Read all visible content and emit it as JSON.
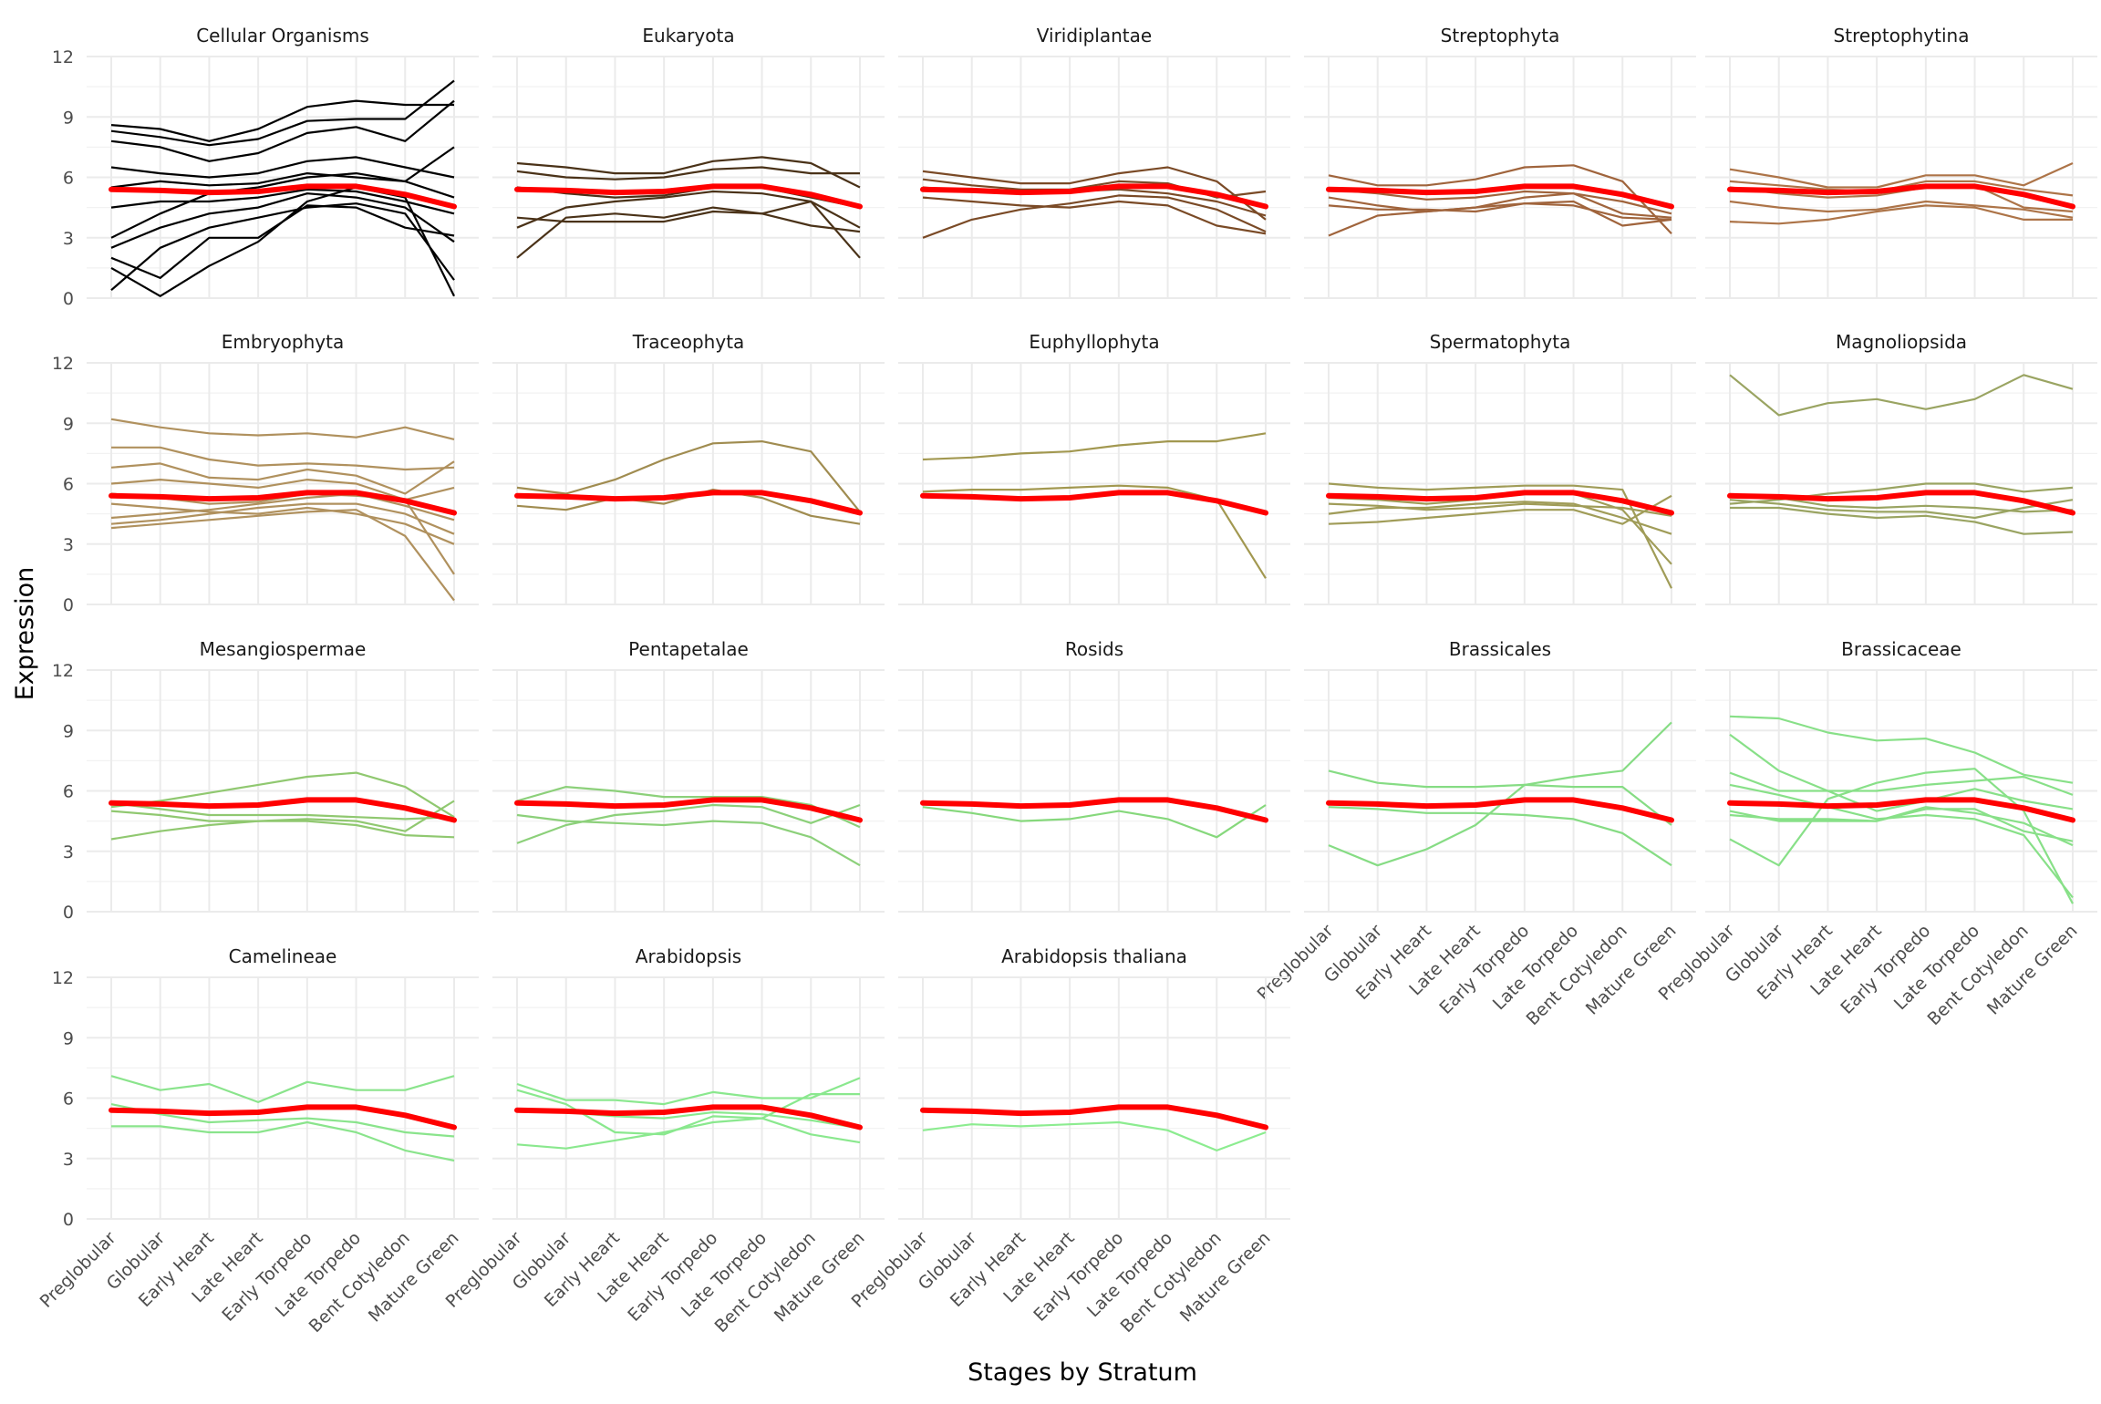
{
  "chart_data": {
    "type": "line",
    "xlabel": "Stages by Stratum",
    "ylabel": "Expression",
    "ylim": [
      0,
      12
    ],
    "y_ticks": [
      0,
      3,
      6,
      9,
      12
    ],
    "categories": [
      "Preglobular",
      "Globular",
      "Early Heart",
      "Late Heart",
      "Early Torpedo",
      "Late Torpedo",
      "Bent Cotyledon",
      "Mature Green"
    ],
    "grid": true,
    "legend": "none",
    "mean_series_color": "#ff0000",
    "mean_values": [
      5.4,
      5.35,
      5.25,
      5.3,
      5.55,
      5.55,
      5.15,
      4.55
    ],
    "panels": [
      {
        "title": "Cellular Organisms",
        "line_color": "#000000",
        "lines": [
          [
            8.6,
            8.4,
            7.8,
            8.4,
            9.5,
            9.8,
            9.6,
            9.6
          ],
          [
            8.3,
            8.0,
            7.6,
            7.9,
            8.8,
            8.9,
            8.9,
            10.8
          ],
          [
            0.4,
            2.5,
            3.5,
            4.0,
            4.5,
            4.7,
            4.2,
            0.9
          ],
          [
            1.5,
            0.1,
            1.6,
            2.8,
            4.8,
            5.5,
            5.0,
            0.1
          ],
          [
            2.0,
            1.0,
            3.0,
            3.0,
            4.6,
            4.5,
            3.5,
            3.1
          ],
          [
            7.8,
            7.5,
            6.8,
            7.2,
            8.2,
            8.5,
            7.8,
            9.8
          ],
          [
            3.0,
            4.2,
            5.2,
            5.5,
            6.0,
            6.2,
            5.8,
            5.0
          ],
          [
            6.5,
            6.2,
            6.0,
            6.2,
            6.8,
            7.0,
            6.5,
            6.0
          ],
          [
            4.5,
            4.8,
            4.8,
            5.0,
            5.4,
            5.3,
            4.8,
            4.2
          ],
          [
            2.5,
            3.5,
            4.2,
            4.5,
            5.2,
            5.0,
            4.5,
            2.8
          ],
          [
            5.5,
            5.8,
            5.6,
            5.7,
            6.2,
            6.0,
            5.8,
            7.5
          ]
        ]
      },
      {
        "title": "Eukaryota",
        "line_color": "#4a3218",
        "lines": [
          [
            6.7,
            6.5,
            6.2,
            6.2,
            6.8,
            7.0,
            6.7,
            5.5
          ],
          [
            6.3,
            6.0,
            5.9,
            6.0,
            6.4,
            6.5,
            6.2,
            6.2
          ],
          [
            2.0,
            4.0,
            4.2,
            4.0,
            4.5,
            4.2,
            4.8,
            2.0
          ],
          [
            4.0,
            3.8,
            3.8,
            3.8,
            4.3,
            4.2,
            3.6,
            3.3
          ],
          [
            5.5,
            5.2,
            5.0,
            5.1,
            5.5,
            5.5,
            5.0,
            4.5
          ],
          [
            3.5,
            4.5,
            4.8,
            5.0,
            5.3,
            5.2,
            4.8,
            3.5
          ]
        ]
      },
      {
        "title": "Viridiplantae",
        "line_color": "#7a4a26",
        "lines": [
          [
            3.0,
            3.9,
            4.4,
            4.7,
            5.1,
            5.0,
            4.4,
            3.3
          ],
          [
            6.3,
            6.0,
            5.7,
            5.7,
            6.2,
            6.5,
            5.8,
            3.9
          ],
          [
            5.9,
            5.6,
            5.4,
            5.4,
            5.8,
            5.7,
            5.0,
            5.3
          ],
          [
            5.0,
            4.8,
            4.6,
            4.5,
            4.8,
            4.6,
            3.6,
            3.2
          ],
          [
            5.5,
            5.3,
            5.2,
            5.3,
            5.4,
            5.2,
            4.8,
            4.1
          ]
        ]
      },
      {
        "title": "Streptophyta",
        "line_color": "#a0643c",
        "lines": [
          [
            3.1,
            4.1,
            4.3,
            4.5,
            4.7,
            4.8,
            3.6,
            3.9
          ],
          [
            6.1,
            5.6,
            5.6,
            5.9,
            6.5,
            6.6,
            5.8,
            3.2
          ],
          [
            5.0,
            4.6,
            4.3,
            4.5,
            5.0,
            5.2,
            4.2,
            4.0
          ],
          [
            4.6,
            4.4,
            4.4,
            4.3,
            4.7,
            4.6,
            4.0,
            3.9
          ],
          [
            5.4,
            5.2,
            4.9,
            5.0,
            5.3,
            5.2,
            4.8,
            4.2
          ]
        ]
      },
      {
        "title": "Streptophytina",
        "line_color": "#ad7448",
        "lines": [
          [
            6.4,
            6.0,
            5.5,
            5.5,
            6.1,
            6.1,
            5.6,
            6.7
          ],
          [
            3.8,
            3.7,
            3.9,
            4.3,
            4.6,
            4.5,
            3.9,
            3.9
          ],
          [
            5.5,
            5.2,
            5.0,
            5.1,
            5.5,
            5.6,
            4.5,
            4.3
          ],
          [
            4.8,
            4.5,
            4.3,
            4.4,
            4.8,
            4.6,
            4.4,
            4.0
          ],
          [
            5.8,
            5.6,
            5.4,
            5.3,
            5.8,
            5.8,
            5.4,
            5.1
          ]
        ]
      },
      {
        "title": "Embryophyta",
        "line_color": "#b0915e",
        "lines": [
          [
            9.2,
            8.8,
            8.5,
            8.4,
            8.5,
            8.3,
            8.8,
            8.2
          ],
          [
            7.8,
            7.8,
            7.2,
            6.9,
            7.0,
            6.9,
            6.7,
            6.8
          ],
          [
            6.8,
            7.0,
            6.3,
            6.2,
            6.7,
            6.4,
            5.5,
            7.1
          ],
          [
            6.0,
            6.2,
            6.0,
            5.8,
            6.2,
            6.0,
            5.2,
            1.5
          ],
          [
            3.8,
            4.0,
            4.2,
            4.4,
            4.6,
            4.7,
            3.4,
            0.2
          ],
          [
            5.0,
            4.8,
            4.6,
            4.5,
            4.8,
            4.5,
            4.0,
            3.0
          ],
          [
            4.3,
            4.5,
            4.7,
            5.0,
            5.3,
            5.5,
            4.9,
            4.2
          ],
          [
            5.5,
            5.3,
            5.0,
            5.1,
            5.5,
            5.4,
            5.2,
            5.8
          ],
          [
            4.0,
            4.2,
            4.5,
            4.8,
            5.0,
            5.0,
            4.5,
            3.5
          ]
        ]
      },
      {
        "title": "Traceophyta",
        "line_color": "#a08c50",
        "lines": [
          [
            5.8,
            5.5,
            6.2,
            7.2,
            8.0,
            8.1,
            7.6,
            4.6
          ],
          [
            4.9,
            4.7,
            5.3,
            5.0,
            5.7,
            5.3,
            4.4,
            4.0
          ]
        ]
      },
      {
        "title": "Euphyllophyta",
        "line_color": "#a29850",
        "lines": [
          [
            7.2,
            7.3,
            7.5,
            7.6,
            7.9,
            8.1,
            8.1,
            8.5
          ],
          [
            5.6,
            5.7,
            5.7,
            5.8,
            5.9,
            5.8,
            5.2,
            1.3
          ]
        ]
      },
      {
        "title": "Spermatophyta",
        "line_color": "#a09c58",
        "lines": [
          [
            6.0,
            5.8,
            5.7,
            5.8,
            5.9,
            5.9,
            5.7,
            0.8
          ],
          [
            4.0,
            4.1,
            4.3,
            4.5,
            4.7,
            4.7,
            4.0,
            5.4
          ],
          [
            5.3,
            5.2,
            5.0,
            5.2,
            5.5,
            5.5,
            4.7,
            2.0
          ],
          [
            4.5,
            4.8,
            4.8,
            5.0,
            5.1,
            5.0,
            4.3,
            3.5
          ],
          [
            5.0,
            4.9,
            4.7,
            4.8,
            5.0,
            4.9,
            4.8,
            4.4
          ]
        ]
      },
      {
        "title": "Magnoliopsida",
        "line_color": "#9aa462",
        "lines": [
          [
            11.4,
            9.4,
            10.0,
            10.2,
            9.7,
            10.2,
            11.4,
            10.7
          ],
          [
            5.0,
            5.2,
            5.5,
            5.7,
            6.0,
            6.0,
            5.6,
            5.8
          ],
          [
            4.8,
            4.8,
            4.5,
            4.3,
            4.4,
            4.1,
            3.5,
            3.6
          ],
          [
            5.2,
            5.0,
            4.7,
            4.6,
            4.6,
            4.3,
            4.8,
            5.2
          ],
          [
            5.4,
            5.3,
            4.9,
            4.8,
            4.9,
            4.8,
            4.6,
            4.7
          ]
        ]
      },
      {
        "title": "Mesangiospermae",
        "line_color": "#90c870",
        "lines": [
          [
            5.2,
            5.5,
            5.9,
            6.3,
            6.7,
            6.9,
            6.2,
            4.7
          ],
          [
            3.6,
            4.0,
            4.3,
            4.5,
            4.6,
            4.5,
            4.0,
            5.5
          ],
          [
            5.0,
            4.8,
            4.5,
            4.5,
            4.5,
            4.3,
            3.8,
            3.7
          ],
          [
            5.4,
            5.1,
            4.8,
            4.8,
            4.8,
            4.7,
            4.6,
            4.7
          ]
        ]
      },
      {
        "title": "Pentapetalae",
        "line_color": "#8cd07a",
        "lines": [
          [
            5.5,
            6.2,
            6.0,
            5.7,
            5.7,
            5.7,
            5.3,
            4.2
          ],
          [
            3.4,
            4.3,
            4.8,
            5.0,
            5.3,
            5.2,
            4.4,
            5.3
          ],
          [
            4.8,
            4.5,
            4.4,
            4.3,
            4.5,
            4.4,
            3.7,
            2.3
          ]
        ]
      },
      {
        "title": "Rosids",
        "line_color": "#86d87c",
        "lines": [
          [
            5.2,
            4.9,
            4.5,
            4.6,
            5.0,
            4.6,
            3.7,
            5.3
          ]
        ]
      },
      {
        "title": "Brassicales",
        "line_color": "#86dc84",
        "lines": [
          [
            7.0,
            6.4,
            6.2,
            6.2,
            6.3,
            6.2,
            6.2,
            4.3
          ],
          [
            3.3,
            2.3,
            3.1,
            4.3,
            6.3,
            6.7,
            7.0,
            9.4
          ],
          [
            5.2,
            5.1,
            4.9,
            4.9,
            4.8,
            4.6,
            3.9,
            2.3
          ]
        ]
      },
      {
        "title": "Brassicaceae",
        "line_color": "#88e088",
        "lines": [
          [
            9.7,
            9.6,
            8.9,
            8.5,
            8.6,
            7.9,
            6.8,
            6.4
          ],
          [
            8.8,
            7.0,
            6.0,
            5.0,
            5.5,
            6.1,
            5.5,
            5.1
          ],
          [
            6.9,
            6.0,
            6.0,
            6.0,
            6.3,
            6.5,
            6.7,
            5.8
          ],
          [
            3.6,
            2.3,
            5.6,
            6.4,
            6.9,
            7.1,
            5.0,
            0.4
          ],
          [
            4.8,
            4.6,
            4.6,
            4.5,
            5.2,
            4.9,
            4.4,
            3.3
          ],
          [
            6.3,
            5.8,
            5.2,
            4.6,
            4.8,
            4.6,
            3.8,
            0.7
          ],
          [
            5.0,
            4.5,
            4.5,
            4.5,
            5.1,
            5.1,
            4.0,
            3.5
          ]
        ]
      },
      {
        "title": "Camelineae",
        "line_color": "#8ae48c",
        "lines": [
          [
            7.1,
            6.4,
            6.7,
            5.8,
            6.8,
            6.4,
            6.4,
            7.1
          ],
          [
            4.6,
            4.6,
            4.3,
            4.3,
            4.8,
            4.3,
            3.4,
            2.9
          ],
          [
            5.7,
            5.2,
            4.8,
            4.9,
            5.0,
            4.8,
            4.3,
            4.1
          ]
        ]
      },
      {
        "title": "Arabidopsis",
        "line_color": "#8ae88e",
        "lines": [
          [
            6.7,
            5.9,
            5.9,
            5.7,
            6.3,
            6.0,
            6.0,
            7.0
          ],
          [
            3.7,
            3.5,
            3.9,
            4.3,
            4.8,
            5.0,
            6.2,
            6.2
          ],
          [
            6.4,
            5.7,
            4.3,
            4.2,
            5.1,
            5.0,
            4.2,
            3.8
          ],
          [
            5.4,
            5.3,
            5.1,
            5.0,
            5.3,
            5.2,
            4.9,
            4.5
          ]
        ]
      },
      {
        "title": "Arabidopsis thaliana",
        "line_color": "#8cec90",
        "lines": [
          [
            4.4,
            4.7,
            4.6,
            4.7,
            4.8,
            4.4,
            3.4,
            4.3
          ]
        ]
      }
    ]
  }
}
